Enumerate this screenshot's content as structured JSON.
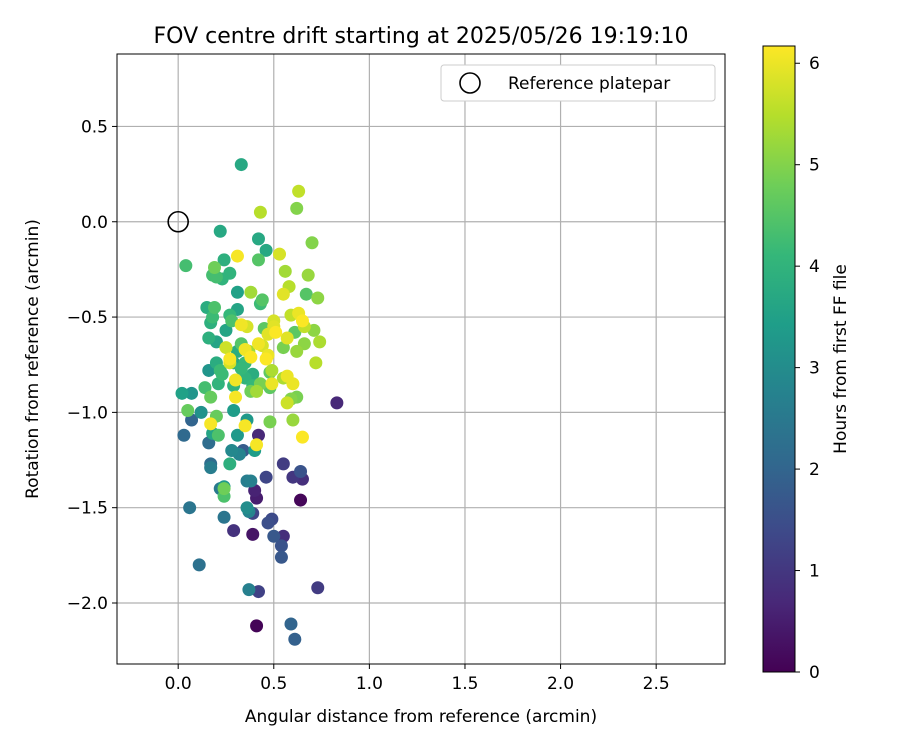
{
  "chart_data": {
    "type": "scatter",
    "title": "FOV centre drift starting at 2025/05/26 19:19:10",
    "xlabel": "Angular distance from reference (arcmin)",
    "ylabel": "Rotation from reference (arcmin)",
    "xlim": [
      -0.32,
      2.86
    ],
    "ylim": [
      -2.32,
      0.88
    ],
    "xticks": [
      0.0,
      0.5,
      1.0,
      1.5,
      2.0,
      2.5
    ],
    "xtick_labels": [
      "0.0",
      "0.5",
      "1.0",
      "1.5",
      "2.0",
      "2.5"
    ],
    "yticks": [
      0.5,
      0.0,
      -0.5,
      -1.0,
      -1.5,
      -2.0
    ],
    "ytick_labels": [
      "0.5",
      "0.0",
      "−0.5",
      "−1.0",
      "−1.5",
      "−2.0"
    ],
    "grid": true,
    "legend": {
      "position": "top-right",
      "entries": [
        "Reference platepar"
      ]
    },
    "reference_point": {
      "x": 0.0,
      "y": 0.0
    },
    "colorbar": {
      "label": "Hours from first FF file",
      "range": [
        0,
        6.17
      ],
      "ticks": [
        0,
        1,
        2,
        3,
        4,
        5,
        6
      ],
      "tick_labels": [
        "0",
        "1",
        "2",
        "3",
        "4",
        "5",
        "6"
      ],
      "colormap": "viridis",
      "stops": [
        "#440154",
        "#482878",
        "#3e4989",
        "#31688e",
        "#26828e",
        "#1f9e89",
        "#35b779",
        "#6ece58",
        "#b5de2b",
        "#fde725"
      ]
    },
    "series": [
      {
        "points": [
          [
            0.41,
            -2.12,
            0.05
          ],
          [
            0.64,
            -1.46,
            0.1
          ],
          [
            0.39,
            -1.64,
            0.35
          ],
          [
            0.83,
            -0.95,
            0.7
          ],
          [
            0.41,
            -1.45,
            0.5
          ],
          [
            0.4,
            -1.41,
            0.6
          ],
          [
            0.42,
            -1.12,
            0.7
          ],
          [
            0.55,
            -1.65,
            0.8
          ],
          [
            0.65,
            -1.35,
            0.85
          ],
          [
            0.29,
            -1.62,
            0.9
          ],
          [
            0.6,
            -1.34,
            1.0
          ],
          [
            0.55,
            -1.27,
            1.1
          ],
          [
            0.73,
            -1.92,
            1.1
          ],
          [
            0.42,
            -1.94,
            1.2
          ],
          [
            0.46,
            -1.34,
            1.3
          ],
          [
            0.39,
            -1.53,
            1.3
          ],
          [
            0.49,
            -1.56,
            1.4
          ],
          [
            0.47,
            -1.58,
            1.5
          ],
          [
            0.64,
            -1.31,
            1.6
          ],
          [
            0.54,
            -1.7,
            1.6
          ],
          [
            0.5,
            -1.65,
            1.7
          ],
          [
            0.54,
            -1.76,
            1.7
          ],
          [
            0.34,
            -1.2,
            1.8
          ],
          [
            0.61,
            -2.19,
            1.9
          ],
          [
            0.59,
            -2.11,
            2.0
          ],
          [
            0.07,
            -1.04,
            2.0
          ],
          [
            0.03,
            -1.12,
            2.1
          ],
          [
            0.16,
            -1.16,
            2.2
          ],
          [
            0.17,
            -1.27,
            2.2
          ],
          [
            0.11,
            -1.8,
            2.3
          ],
          [
            0.06,
            -1.5,
            2.4
          ],
          [
            0.24,
            -1.55,
            2.4
          ],
          [
            0.22,
            -1.4,
            2.5
          ],
          [
            0.17,
            -1.29,
            2.6
          ],
          [
            0.36,
            -1.36,
            2.6
          ],
          [
            0.37,
            -1.93,
            2.7
          ],
          [
            0.38,
            -1.36,
            2.7
          ],
          [
            0.32,
            -1.22,
            2.8
          ],
          [
            0.37,
            -1.52,
            2.8
          ],
          [
            0.28,
            -1.2,
            2.9
          ],
          [
            0.36,
            -1.5,
            3.0
          ],
          [
            0.12,
            -1.0,
            3.1
          ],
          [
            0.07,
            -0.9,
            3.2
          ],
          [
            0.16,
            -0.78,
            3.2
          ],
          [
            0.24,
            -1.39,
            3.3
          ],
          [
            0.31,
            -1.12,
            3.3
          ],
          [
            0.36,
            -1.04,
            3.3
          ],
          [
            0.4,
            -1.2,
            3.4
          ],
          [
            0.29,
            -0.99,
            3.4
          ],
          [
            0.31,
            -0.37,
            3.5
          ],
          [
            0.02,
            -0.9,
            3.5
          ],
          [
            0.18,
            -1.11,
            3.6
          ],
          [
            0.2,
            -0.63,
            3.6
          ],
          [
            0.25,
            -0.57,
            3.6
          ],
          [
            0.31,
            -0.46,
            3.6
          ],
          [
            0.33,
            0.3,
            3.7
          ],
          [
            0.42,
            -0.09,
            3.7
          ],
          [
            0.46,
            -0.15,
            3.7
          ],
          [
            0.22,
            -0.05,
            3.7
          ],
          [
            0.29,
            -0.74,
            3.7
          ],
          [
            0.31,
            -0.68,
            3.8
          ],
          [
            0.39,
            -0.8,
            3.8
          ],
          [
            0.15,
            -0.45,
            3.8
          ],
          [
            0.2,
            -0.74,
            3.8
          ],
          [
            0.17,
            -0.53,
            3.9
          ],
          [
            0.24,
            -0.2,
            3.9
          ],
          [
            0.16,
            -0.61,
            3.9
          ],
          [
            0.27,
            -1.27,
            3.9
          ],
          [
            0.29,
            -0.86,
            4.0
          ],
          [
            0.35,
            -0.82,
            4.0
          ],
          [
            0.27,
            -0.27,
            4.0
          ],
          [
            0.23,
            -0.3,
            4.0
          ],
          [
            0.21,
            -0.85,
            4.0
          ],
          [
            0.27,
            -0.49,
            4.1
          ],
          [
            0.35,
            -0.74,
            4.1
          ],
          [
            0.33,
            -0.77,
            4.1
          ],
          [
            0.39,
            -0.86,
            4.1
          ],
          [
            0.43,
            -0.43,
            4.2
          ],
          [
            0.22,
            -0.78,
            4.2
          ],
          [
            0.23,
            -0.8,
            4.2
          ],
          [
            0.18,
            -0.5,
            4.2
          ],
          [
            0.04,
            -0.23,
            4.3
          ],
          [
            0.18,
            -0.28,
            4.3
          ],
          [
            0.2,
            -0.29,
            4.3
          ],
          [
            0.14,
            -0.87,
            4.3
          ],
          [
            0.19,
            -0.45,
            4.4
          ],
          [
            0.28,
            -0.52,
            4.4
          ],
          [
            0.24,
            -1.44,
            4.4
          ],
          [
            0.21,
            -1.12,
            4.4
          ],
          [
            0.42,
            -0.2,
            4.5
          ],
          [
            0.44,
            -0.41,
            4.5
          ],
          [
            0.33,
            -0.64,
            4.5
          ],
          [
            0.67,
            -0.38,
            4.5
          ],
          [
            0.45,
            -0.56,
            4.6
          ],
          [
            0.48,
            -0.87,
            4.6
          ],
          [
            0.48,
            -0.79,
            4.6
          ],
          [
            0.61,
            -0.58,
            4.6
          ],
          [
            0.05,
            -0.99,
            4.7
          ],
          [
            0.2,
            -1.02,
            4.7
          ],
          [
            0.17,
            -0.92,
            4.7
          ],
          [
            0.19,
            -0.24,
            4.8
          ],
          [
            0.24,
            -1.4,
            4.8
          ],
          [
            0.38,
            -0.89,
            4.8
          ],
          [
            0.43,
            -0.85,
            4.9
          ],
          [
            0.48,
            -1.05,
            4.9
          ],
          [
            0.55,
            -0.66,
            4.9
          ],
          [
            0.62,
            -0.92,
            4.9
          ],
          [
            0.59,
            -0.93,
            5.0
          ],
          [
            0.7,
            -0.11,
            5.0
          ],
          [
            0.62,
            0.07,
            5.0
          ],
          [
            0.66,
            -0.64,
            5.1
          ],
          [
            0.71,
            -0.57,
            5.1
          ],
          [
            0.73,
            -0.4,
            5.1
          ],
          [
            0.68,
            -0.28,
            5.2
          ],
          [
            0.62,
            -0.68,
            5.2
          ],
          [
            0.6,
            -1.04,
            5.2
          ],
          [
            0.56,
            -0.26,
            5.3
          ],
          [
            0.38,
            -0.37,
            5.3
          ],
          [
            0.37,
            -0.68,
            5.3
          ],
          [
            0.41,
            -0.89,
            5.3
          ],
          [
            0.49,
            -0.78,
            5.4
          ],
          [
            0.55,
            -0.82,
            5.4
          ],
          [
            0.74,
            -0.63,
            5.4
          ],
          [
            0.72,
            -0.74,
            5.5
          ],
          [
            0.43,
            0.05,
            5.5
          ],
          [
            0.58,
            -0.34,
            5.5
          ],
          [
            0.66,
            -0.55,
            5.6
          ],
          [
            0.59,
            -0.49,
            5.6
          ],
          [
            0.63,
            0.16,
            5.6
          ],
          [
            0.57,
            -0.95,
            5.7
          ],
          [
            0.25,
            -0.66,
            5.7
          ],
          [
            0.27,
            -0.74,
            5.8
          ],
          [
            0.36,
            -0.55,
            5.8
          ],
          [
            0.44,
            -0.65,
            5.8
          ],
          [
            0.5,
            -0.52,
            5.8
          ],
          [
            0.53,
            -0.17,
            5.8
          ],
          [
            0.55,
            -0.38,
            5.9
          ],
          [
            0.5,
            -0.55,
            5.9
          ],
          [
            0.47,
            -0.59,
            5.9
          ],
          [
            0.57,
            -0.61,
            5.9
          ],
          [
            0.57,
            -0.81,
            6.0
          ],
          [
            0.6,
            -0.85,
            6.0
          ],
          [
            0.63,
            -0.48,
            6.0
          ],
          [
            0.49,
            -0.85,
            6.0
          ],
          [
            0.47,
            -0.7,
            6.0
          ],
          [
            0.42,
            -0.64,
            6.05
          ],
          [
            0.35,
            -0.67,
            6.05
          ],
          [
            0.33,
            -0.54,
            6.05
          ],
          [
            0.3,
            -0.83,
            6.05
          ],
          [
            0.3,
            -0.92,
            6.1
          ],
          [
            0.31,
            -0.18,
            6.1
          ],
          [
            0.27,
            -0.72,
            6.1
          ],
          [
            0.17,
            -1.06,
            6.1
          ],
          [
            0.35,
            -1.07,
            6.1
          ],
          [
            0.41,
            -1.17,
            6.1
          ],
          [
            0.65,
            -1.13,
            6.15
          ],
          [
            0.65,
            -0.52,
            6.15
          ],
          [
            0.46,
            -0.72,
            6.15
          ],
          [
            0.51,
            -0.58,
            6.15
          ],
          [
            0.38,
            -0.71,
            6.15
          ]
        ]
      }
    ]
  }
}
